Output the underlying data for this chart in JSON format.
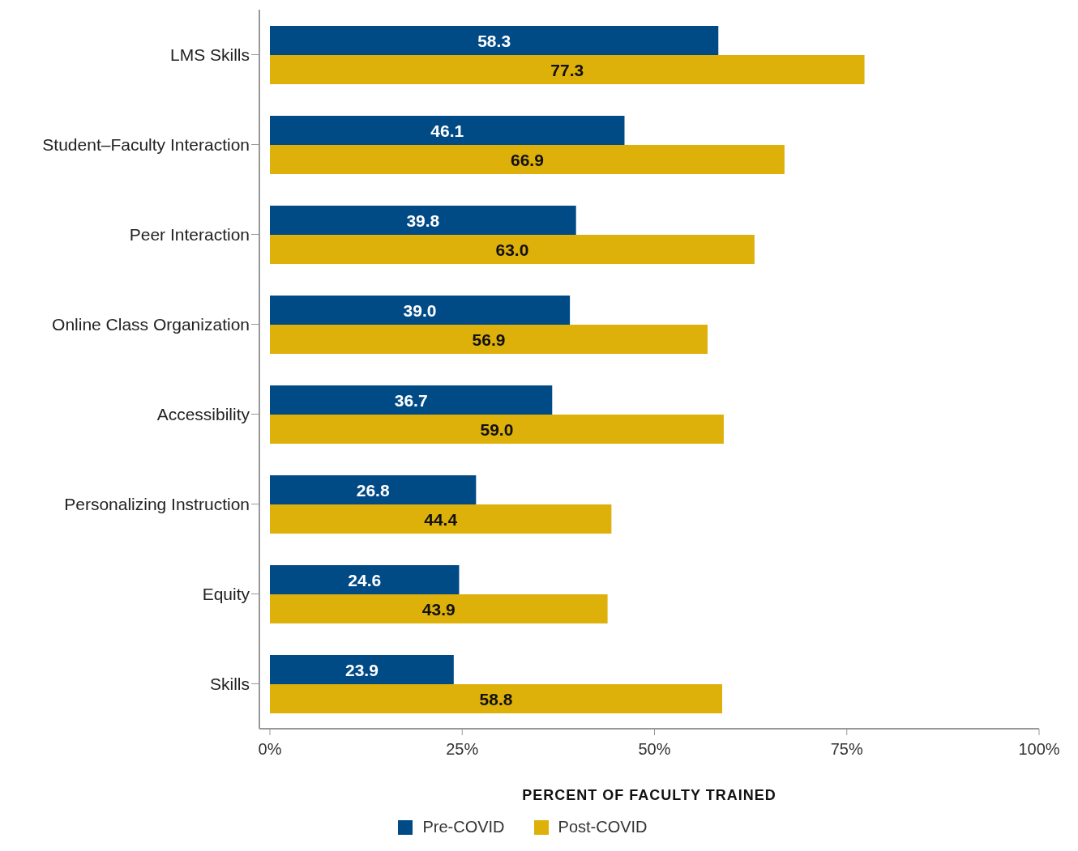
{
  "chart_data": {
    "type": "bar",
    "orientation": "horizontal",
    "xlabel": "PERCENT OF FACULTY TRAINED",
    "categories": [
      "LMS Skills",
      "Student–Faculty Interaction",
      "Peer Interaction",
      "Online Class Organization",
      "Accessibility",
      "Personalizing Instruction",
      "Equity",
      "Skills"
    ],
    "series": [
      {
        "name": "Pre-COVID",
        "color": "#004a86",
        "values": [
          58.3,
          46.1,
          39.8,
          39.0,
          36.7,
          26.8,
          24.6,
          23.9
        ],
        "value_labels": [
          "58.3",
          "46.1",
          "39.8",
          "39.0",
          "36.7",
          "26.8",
          "24.6",
          "23.9"
        ]
      },
      {
        "name": "Post-COVID",
        "color": "#deb00a",
        "values": [
          77.3,
          66.9,
          63.0,
          56.9,
          59.0,
          44.4,
          43.9,
          58.8
        ],
        "value_labels": [
          "77.3",
          "66.9",
          "63.0",
          "56.9",
          "59.0",
          "44.4",
          "43.9",
          "58.8"
        ]
      }
    ],
    "xlim": [
      0,
      100
    ],
    "xticks": [
      {
        "value": 0,
        "label": "0%"
      },
      {
        "value": 25,
        "label": "25%"
      },
      {
        "value": 50,
        "label": "50%"
      },
      {
        "value": 75,
        "label": "75%"
      },
      {
        "value": 100,
        "label": "100%"
      }
    ],
    "grid": false,
    "legend": "bottom"
  }
}
